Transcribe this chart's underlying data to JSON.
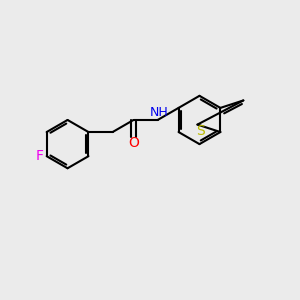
{
  "background_color": "#ebebeb",
  "bond_color": "#000000",
  "bond_width": 1.5,
  "font_size": 9,
  "F_color": "#ee00ee",
  "O_color": "#ff0000",
  "N_color": "#0000ee",
  "S_color": "#bbbb00",
  "H_color": "#7a7a7a",
  "figsize": [
    3.0,
    3.0
  ],
  "dpi": 100,
  "xlim": [
    0,
    10
  ],
  "ylim": [
    0,
    10
  ]
}
